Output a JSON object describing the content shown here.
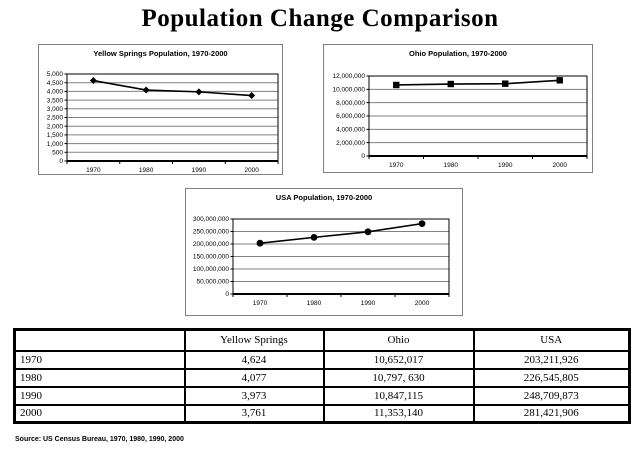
{
  "page": {
    "title": "Population Change Comparison",
    "source_note": "Source: US Census Bureau, 1970, 1980, 1990, 2000"
  },
  "chart_data": [
    {
      "type": "line",
      "title": "Yellow Springs Population, 1970-2000",
      "categories": [
        "1970",
        "1980",
        "1990",
        "2000"
      ],
      "values": [
        4624,
        4077,
        3973,
        3761
      ],
      "ylim": [
        0,
        5000
      ],
      "ystep": 500,
      "ytick_labels": [
        "0",
        "500",
        "1,000",
        "1,500",
        "2,000",
        "2,500",
        "3,000",
        "3,500",
        "4,000",
        "4,500",
        "5,000"
      ],
      "marker": "diamond",
      "grid": true,
      "legend": "none",
      "line_color": "#000000",
      "grid_color": "#808080"
    },
    {
      "type": "line",
      "title": "Ohio Population, 1970-2000",
      "categories": [
        "1970",
        "1980",
        "1990",
        "2000"
      ],
      "values": [
        10652017,
        10797630,
        10847115,
        11353140
      ],
      "ylim": [
        0,
        12000000
      ],
      "ystep": 2000000,
      "ytick_labels": [
        "0",
        "2,000,000",
        "4,000,000",
        "6,000,000",
        "8,000,000",
        "10,000,000",
        "12,000,000"
      ],
      "marker": "square",
      "grid": true,
      "legend": "none",
      "line_color": "#000000",
      "grid_color": "#808080"
    },
    {
      "type": "line",
      "title": "USA Population, 1970-2000",
      "categories": [
        "1970",
        "1980",
        "1990",
        "2000"
      ],
      "values": [
        203211926,
        226545805,
        248709873,
        281421906
      ],
      "ylim": [
        0,
        300000000
      ],
      "ystep": 50000000,
      "ytick_labels": [
        "0",
        "50,000,000",
        "100,000,000",
        "150,000,000",
        "200,000,000",
        "250,000,000",
        "300,000,000"
      ],
      "marker": "circle",
      "grid": true,
      "legend": "none",
      "line_color": "#000000",
      "grid_color": "#808080"
    }
  ],
  "table": {
    "headers": [
      "",
      "Yellow Springs",
      "Ohio",
      "USA"
    ],
    "rows": [
      {
        "label": "1970",
        "values": [
          "4,624",
          "10,652,017",
          "203,211,926"
        ]
      },
      {
        "label": "1980",
        "values": [
          "4,077",
          "10,797, 630",
          "226,545,805"
        ]
      },
      {
        "label": "1990",
        "values": [
          "3,973",
          "10,847,115",
          "248,709,873"
        ]
      },
      {
        "label": "2000",
        "values": [
          "3,761",
          "11,353,140",
          "281,421,906"
        ]
      }
    ]
  }
}
